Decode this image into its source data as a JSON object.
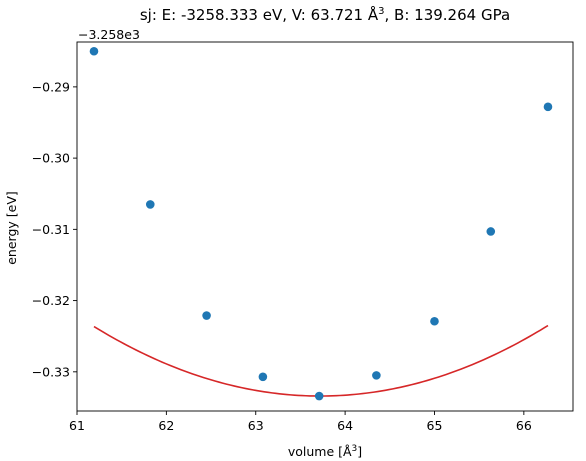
{
  "chart_data": {
    "type": "scatter",
    "title_parts": {
      "prefix": "sj: E: -3258.333 eV, V: 63.721 Å",
      "sup": "3",
      "suffix": ", B: 139.264 GPa"
    },
    "x_axis": {
      "label_text": "volume [Å",
      "label_sup": "3",
      "label_close": "]",
      "lim": [
        61.0,
        66.55
      ],
      "ticks": [
        61,
        62,
        63,
        64,
        65,
        66
      ],
      "tick_labels": [
        "61",
        "62",
        "63",
        "64",
        "65",
        "66"
      ]
    },
    "y_axis": {
      "label": "energy [eV]",
      "offset_text": "−3.258e3",
      "lim": [
        -0.3355,
        -0.2837
      ],
      "ticks": [
        -0.33,
        -0.32,
        -0.31,
        -0.3,
        -0.29
      ],
      "tick_labels": [
        "−0.33",
        "−0.32",
        "−0.31",
        "−0.30",
        "−0.29"
      ]
    },
    "series": [
      {
        "kind": "points",
        "color": "#1f77b4",
        "x": [
          61.19,
          61.82,
          62.45,
          63.08,
          63.71,
          64.35,
          65.0,
          65.63,
          66.27
        ],
        "y": [
          -0.285,
          -0.3065,
          -0.3221,
          -0.3307,
          -0.3334,
          -0.3305,
          -0.3229,
          -0.3103,
          -0.2928
        ]
      },
      {
        "kind": "fit",
        "color": "#d62728",
        "fit": {
          "e0": -0.3334,
          "v0": 63.721,
          "curvature": 1.5236
        }
      }
    ],
    "grid": false,
    "legend": "none"
  }
}
